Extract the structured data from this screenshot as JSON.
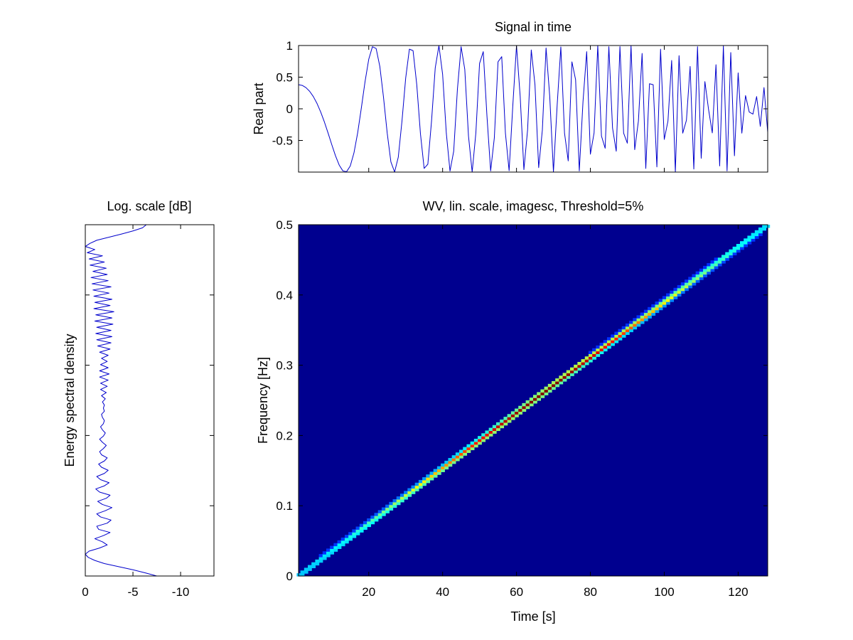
{
  "chart_data": [
    {
      "id": "signal",
      "type": "line",
      "title": "Signal in time",
      "xlabel": "",
      "ylabel": "Real part",
      "xlim": [
        1,
        128
      ],
      "ylim": [
        -1,
        1
      ],
      "yticks": [
        -0.5,
        0,
        0.5,
        1
      ],
      "ytick_labels": [
        "-0.5",
        "0",
        "0.5",
        "1"
      ],
      "signal": {
        "kind": "linear chirp, real part",
        "f_start_hz": 0,
        "f_end_hz": 0.5,
        "samples": 128
      }
    },
    {
      "id": "spectrum",
      "type": "line",
      "title": "Log. scale [dB]",
      "xlabel": "",
      "ylabel": "Energy spectral density",
      "xlim": [
        0,
        -13.5
      ],
      "ylim": [
        0,
        0.5
      ],
      "xticks": [
        0,
        -5,
        -10
      ],
      "xtick_labels": [
        "0",
        "-5",
        "-10"
      ],
      "values_db": [
        -7.5,
        -6.3,
        -5.0,
        -3.5,
        -2.0,
        -1.0,
        -0.3,
        0.0,
        -0.4,
        -1.5,
        -2.3,
        -1.8,
        -1.0,
        -1.9,
        -2.6,
        -1.4,
        -1.2,
        -2.3,
        -2.7,
        -1.6,
        -1.2,
        -2.1,
        -2.8,
        -1.8,
        -1.3,
        -2.2,
        -2.6,
        -1.5,
        -1.1,
        -2.0,
        -2.5,
        -1.6,
        -1.2,
        -2.0,
        -2.4,
        -1.7,
        -1.4,
        -2.0,
        -2.3,
        -1.7,
        -1.5,
        -1.9,
        -2.2,
        -1.8,
        -1.5,
        -1.9,
        -2.1,
        -1.8,
        -1.6,
        -1.9,
        -2.0,
        -1.8,
        -1.7,
        -2.0,
        -1.9,
        -2.0,
        -1.8,
        -2.1,
        -1.7,
        -2.2,
        -1.6,
        -2.3,
        -1.6,
        -2.4,
        -1.5,
        -2.5,
        -1.5,
        -2.4,
        -1.6,
        -2.3,
        -1.7,
        -2.4,
        -1.5,
        -2.6,
        -1.3,
        -2.7,
        -1.2,
        -2.8,
        -1.1,
        -2.7,
        -1.2,
        -2.9,
        -1.0,
        -2.8,
        -1.1,
        -3.0,
        -0.9,
        -2.6,
        -1.0,
        -2.8,
        -0.9,
        -2.5,
        -0.8,
        -2.7,
        -0.7,
        -2.4,
        -0.6,
        -2.3,
        -0.8,
        -2.2,
        -0.5,
        -2.0,
        -0.4,
        -1.8,
        -0.2,
        -1.0,
        0.0,
        -0.5,
        -1.2,
        -2.5,
        -3.8,
        -5.0,
        -6.0,
        -6.4
      ]
    },
    {
      "id": "wigner-ville",
      "type": "heatmap",
      "title": "WV, lin. scale, imagesc, Threshold=5%",
      "xlabel": "Time [s]",
      "ylabel": "Frequency [Hz]",
      "xlim": [
        1,
        128
      ],
      "ylim": [
        0,
        0.5
      ],
      "xticks": [
        20,
        40,
        60,
        80,
        100,
        120
      ],
      "xtick_labels": [
        "20",
        "40",
        "60",
        "80",
        "100",
        "120"
      ],
      "yticks": [
        0,
        0.1,
        0.2,
        0.3,
        0.4,
        0.5
      ],
      "ytick_labels": [
        "0",
        "0.1",
        "0.2",
        "0.3",
        "0.4",
        "0.5"
      ],
      "ridge": {
        "t_start": 1,
        "f_start": 0,
        "t_end": 128,
        "f_end": 0.5,
        "peak_center_time": 68,
        "colormap": "jet"
      }
    }
  ]
}
